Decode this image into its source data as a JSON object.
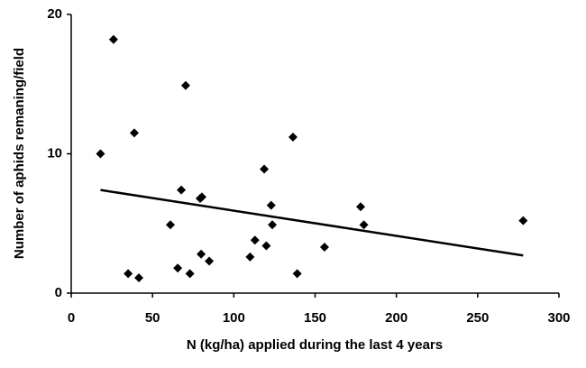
{
  "chart_data": {
    "type": "scatter",
    "x_label": "N (kg/ha) applied during the last 4 years",
    "y_label": "Number of aphids remaning/field",
    "x": [
      18,
      26,
      70.4,
      38.8,
      136.4,
      118.7,
      67.7,
      80.4,
      79.3,
      178,
      123,
      61,
      123.7,
      180,
      278,
      113,
      120,
      155.8,
      79.9,
      110,
      84.9,
      65.5,
      35,
      73,
      41.6,
      139
    ],
    "values": [
      10,
      18.2,
      14.9,
      11.5,
      11.2,
      8.9,
      7.4,
      6.9,
      6.8,
      6.2,
      6.3,
      4.9,
      4.9,
      4.9,
      5.2,
      3.8,
      3.4,
      3.3,
      2.8,
      2.6,
      2.3,
      1.8,
      1.4,
      1.4,
      1.1,
      1.4
    ],
    "color": "#000000",
    "trendline": {
      "x": [
        18,
        278
      ],
      "values": [
        7.4,
        2.7
      ]
    },
    "xlim": [
      0,
      300
    ],
    "xticks": [
      0,
      50,
      100,
      150,
      200,
      250,
      300
    ],
    "ylim": [
      0,
      20
    ],
    "yticks": [
      0,
      10,
      20
    ]
  }
}
